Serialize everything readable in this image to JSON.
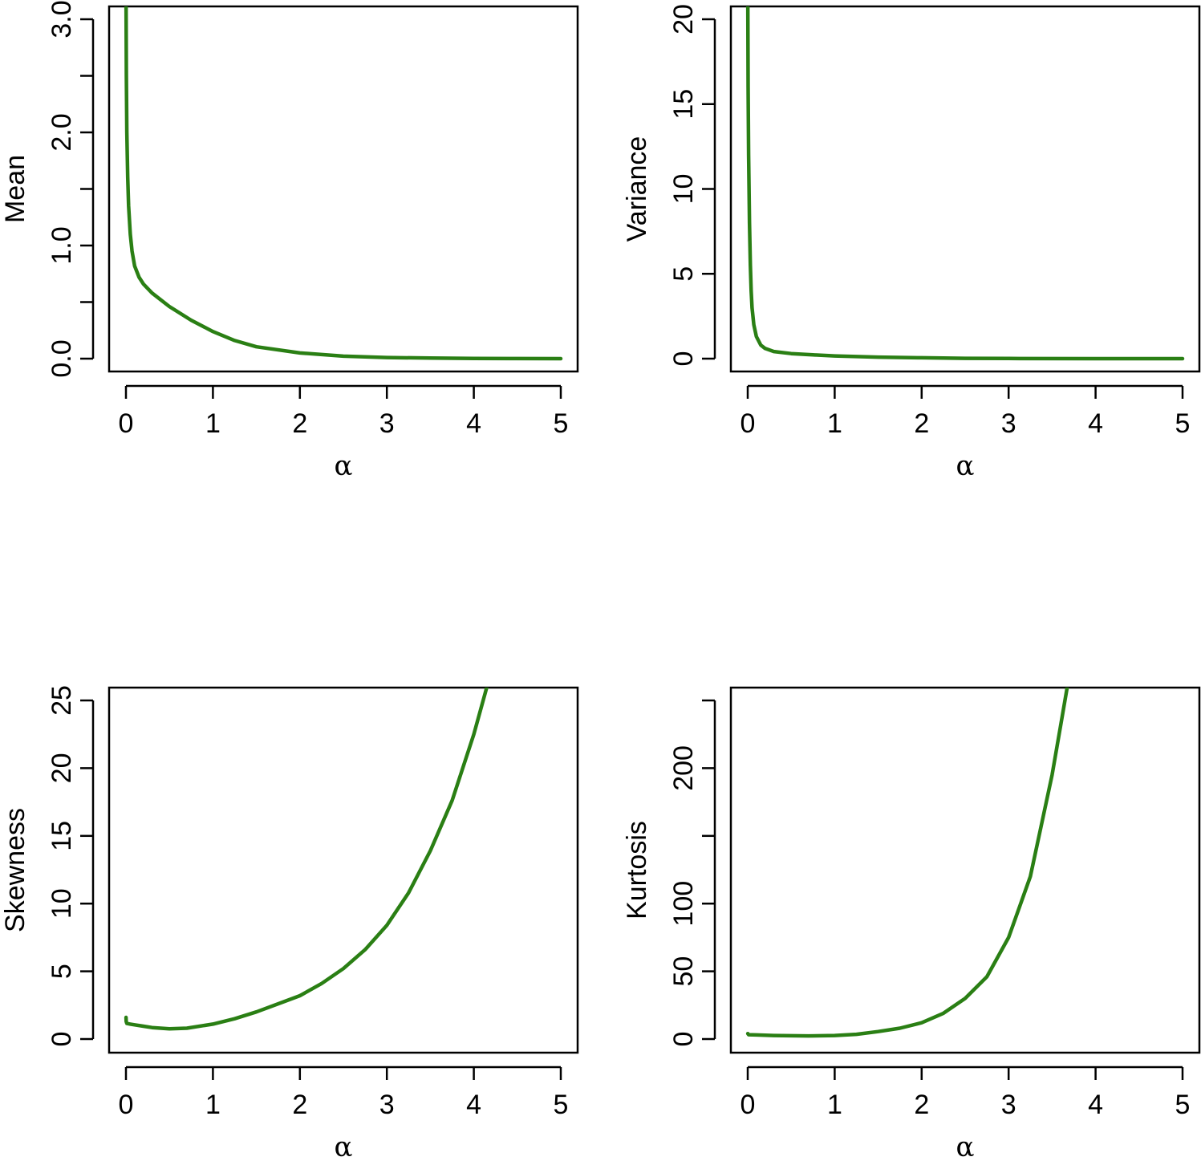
{
  "colors": {
    "line": "#2a7f14"
  },
  "chart_data": [
    {
      "type": "line",
      "xlabel": "α",
      "ylabel": "Mean",
      "xlim": [
        0,
        5
      ],
      "ylim": [
        0,
        3.0
      ],
      "xticks": [
        0,
        1,
        2,
        3,
        4,
        5
      ],
      "xtick_labels": [
        "0",
        "1",
        "2",
        "3",
        "4",
        "5"
      ],
      "yticks": [
        0,
        0.5,
        1.0,
        1.5,
        2.0,
        2.5,
        3.0
      ],
      "ytick_labels": [
        "0.0",
        "",
        "1.0",
        "",
        "2.0",
        "",
        "3.0"
      ],
      "series": [
        {
          "x": [
            0.001,
            0.005,
            0.01,
            0.02,
            0.03,
            0.05,
            0.07,
            0.1,
            0.15,
            0.2,
            0.3,
            0.5,
            0.75,
            1.0,
            1.25,
            1.5,
            2.0,
            2.5,
            3.0,
            3.5,
            4.0,
            4.5,
            5.0
          ],
          "y": [
            3.2,
            2.5,
            2.0,
            1.6,
            1.35,
            1.1,
            0.95,
            0.82,
            0.72,
            0.66,
            0.58,
            0.46,
            0.34,
            0.24,
            0.16,
            0.105,
            0.05,
            0.022,
            0.01,
            0.005,
            0.002,
            0.001,
            0.0
          ]
        }
      ]
    },
    {
      "type": "line",
      "xlabel": "α",
      "ylabel": "Variance",
      "xlim": [
        0,
        5
      ],
      "ylim": [
        0,
        20
      ],
      "xticks": [
        0,
        1,
        2,
        3,
        4,
        5
      ],
      "xtick_labels": [
        "0",
        "1",
        "2",
        "3",
        "4",
        "5"
      ],
      "yticks": [
        0,
        5,
        10,
        15,
        20
      ],
      "ytick_labels": [
        "0",
        "5",
        "10",
        "15",
        "20"
      ],
      "series": [
        {
          "x": [
            0.001,
            0.005,
            0.01,
            0.02,
            0.03,
            0.04,
            0.05,
            0.07,
            0.1,
            0.15,
            0.2,
            0.3,
            0.5,
            0.75,
            1.0,
            1.5,
            2.0,
            2.5,
            3.0,
            4.0,
            5.0
          ],
          "y": [
            21.5,
            16.0,
            12.0,
            8.0,
            5.5,
            4.0,
            3.0,
            2.0,
            1.3,
            0.8,
            0.6,
            0.42,
            0.3,
            0.22,
            0.16,
            0.09,
            0.05,
            0.02,
            0.01,
            0.002,
            0.0
          ]
        }
      ]
    },
    {
      "type": "line",
      "xlabel": "α",
      "ylabel": "Skewness",
      "xlim": [
        0,
        5
      ],
      "ylim": [
        0,
        25
      ],
      "xticks": [
        0,
        1,
        2,
        3,
        4,
        5
      ],
      "xtick_labels": [
        "0",
        "1",
        "2",
        "3",
        "4",
        "5"
      ],
      "yticks": [
        0,
        5,
        10,
        15,
        20,
        25
      ],
      "ytick_labels": [
        "0",
        "5",
        "10",
        "15",
        "20",
        "25"
      ],
      "series": [
        {
          "x": [
            0.001,
            0.003,
            0.01,
            0.05,
            0.1,
            0.2,
            0.3,
            0.5,
            0.7,
            1.0,
            1.25,
            1.5,
            1.75,
            2.0,
            2.25,
            2.5,
            2.75,
            3.0,
            3.25,
            3.5,
            3.75,
            4.0,
            4.15
          ],
          "y": [
            1.6,
            1.3,
            1.15,
            1.1,
            1.05,
            0.95,
            0.85,
            0.75,
            0.8,
            1.1,
            1.5,
            2.0,
            2.6,
            3.2,
            4.1,
            5.2,
            6.6,
            8.4,
            10.8,
            13.9,
            17.6,
            22.5,
            26.0
          ]
        }
      ]
    },
    {
      "type": "line",
      "xlabel": "α",
      "ylabel": "Kurtosis",
      "xlim": [
        0,
        5
      ],
      "ylim": [
        0,
        250
      ],
      "xticks": [
        0,
        1,
        2,
        3,
        4,
        5
      ],
      "xtick_labels": [
        "0",
        "1",
        "2",
        "3",
        "4",
        "5"
      ],
      "yticks": [
        0,
        50,
        100,
        150,
        200,
        250
      ],
      "ytick_labels": [
        "0",
        "50",
        "100",
        "",
        "200",
        ""
      ],
      "series": [
        {
          "x": [
            0.001,
            0.01,
            0.1,
            0.3,
            0.5,
            0.7,
            1.0,
            1.25,
            1.5,
            1.75,
            2.0,
            2.25,
            2.5,
            2.75,
            3.0,
            3.25,
            3.5,
            3.6,
            3.68
          ],
          "y": [
            4.0,
            3.2,
            3.0,
            2.6,
            2.4,
            2.3,
            2.6,
            3.5,
            5.5,
            8.0,
            12.0,
            19.0,
            30.0,
            46.0,
            75.0,
            120.0,
            195.0,
            232.0,
            262.0
          ]
        }
      ]
    }
  ]
}
